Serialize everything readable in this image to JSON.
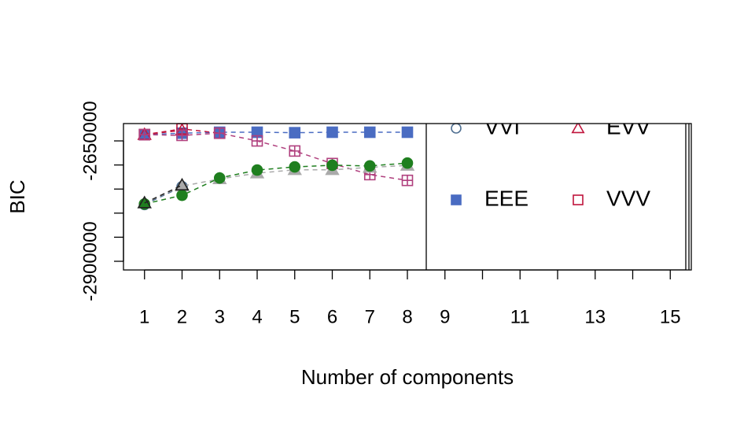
{
  "chart_data": {
    "type": "line",
    "x_label": "Number of components",
    "y_label": "BIC",
    "x": [
      1,
      2,
      3,
      4,
      5,
      6,
      7,
      8
    ],
    "xlim": [
      0.44,
      15.56
    ],
    "xticks": [
      1,
      2,
      3,
      4,
      5,
      6,
      7,
      8,
      9,
      10,
      11,
      12,
      13,
      14,
      15
    ],
    "ylim": [
      -2918000,
      -2614000
    ],
    "yticks": [
      -2900000,
      -2850000,
      -2800000,
      -2750000,
      -2700000,
      -2650000
    ],
    "legend": "topright",
    "series": [
      {
        "name": "VVI",
        "color": "#4f6f91",
        "pch": "circle-open",
        "values": [
          -2782000,
          -2745000,
          null,
          null,
          null,
          null,
          null,
          null
        ]
      },
      {
        "name": "EEE",
        "color": "#4a6cc2",
        "pch": "square",
        "values": [
          -2637000,
          -2634000,
          -2632000,
          -2632000,
          -2633000,
          -2632000,
          -2632000,
          -2632000
        ]
      },
      {
        "name": "EVV",
        "color": "#c0143c",
        "pch": "triangle-open",
        "values": [
          -2637000,
          -2628000,
          null,
          null,
          null,
          null,
          null,
          null
        ]
      },
      {
        "name": "VVV",
        "color": "#c0143c",
        "pch": "square-open",
        "values": [
          -2637000,
          -2625000,
          -2634000,
          null,
          null,
          null,
          null,
          null
        ]
      },
      {
        "color": "#b0407e",
        "pch": "square-plus",
        "values": [
          -2637000,
          -2638500,
          -2634000,
          -2650000,
          -2671000,
          -2697000,
          -2720000,
          -2732000
        ]
      },
      {
        "color": "#aaaaaa",
        "pch": "triangle",
        "values": [
          -2779000,
          -2744000,
          -2729000,
          -2717000,
          -2710000,
          -2710000,
          -2705000,
          -2701000
        ]
      },
      {
        "color": "#1f7f1f",
        "pch": "circle",
        "values": [
          -2781000,
          -2763000,
          -2727000,
          -2710500,
          -2704000,
          -2700500,
          -2702000,
          -2696000
        ]
      },
      {
        "color": "#222222",
        "pch": "triangle-open",
        "values": [
          -2779000,
          -2742000,
          null,
          null,
          null,
          null,
          null,
          null
        ]
      }
    ]
  }
}
